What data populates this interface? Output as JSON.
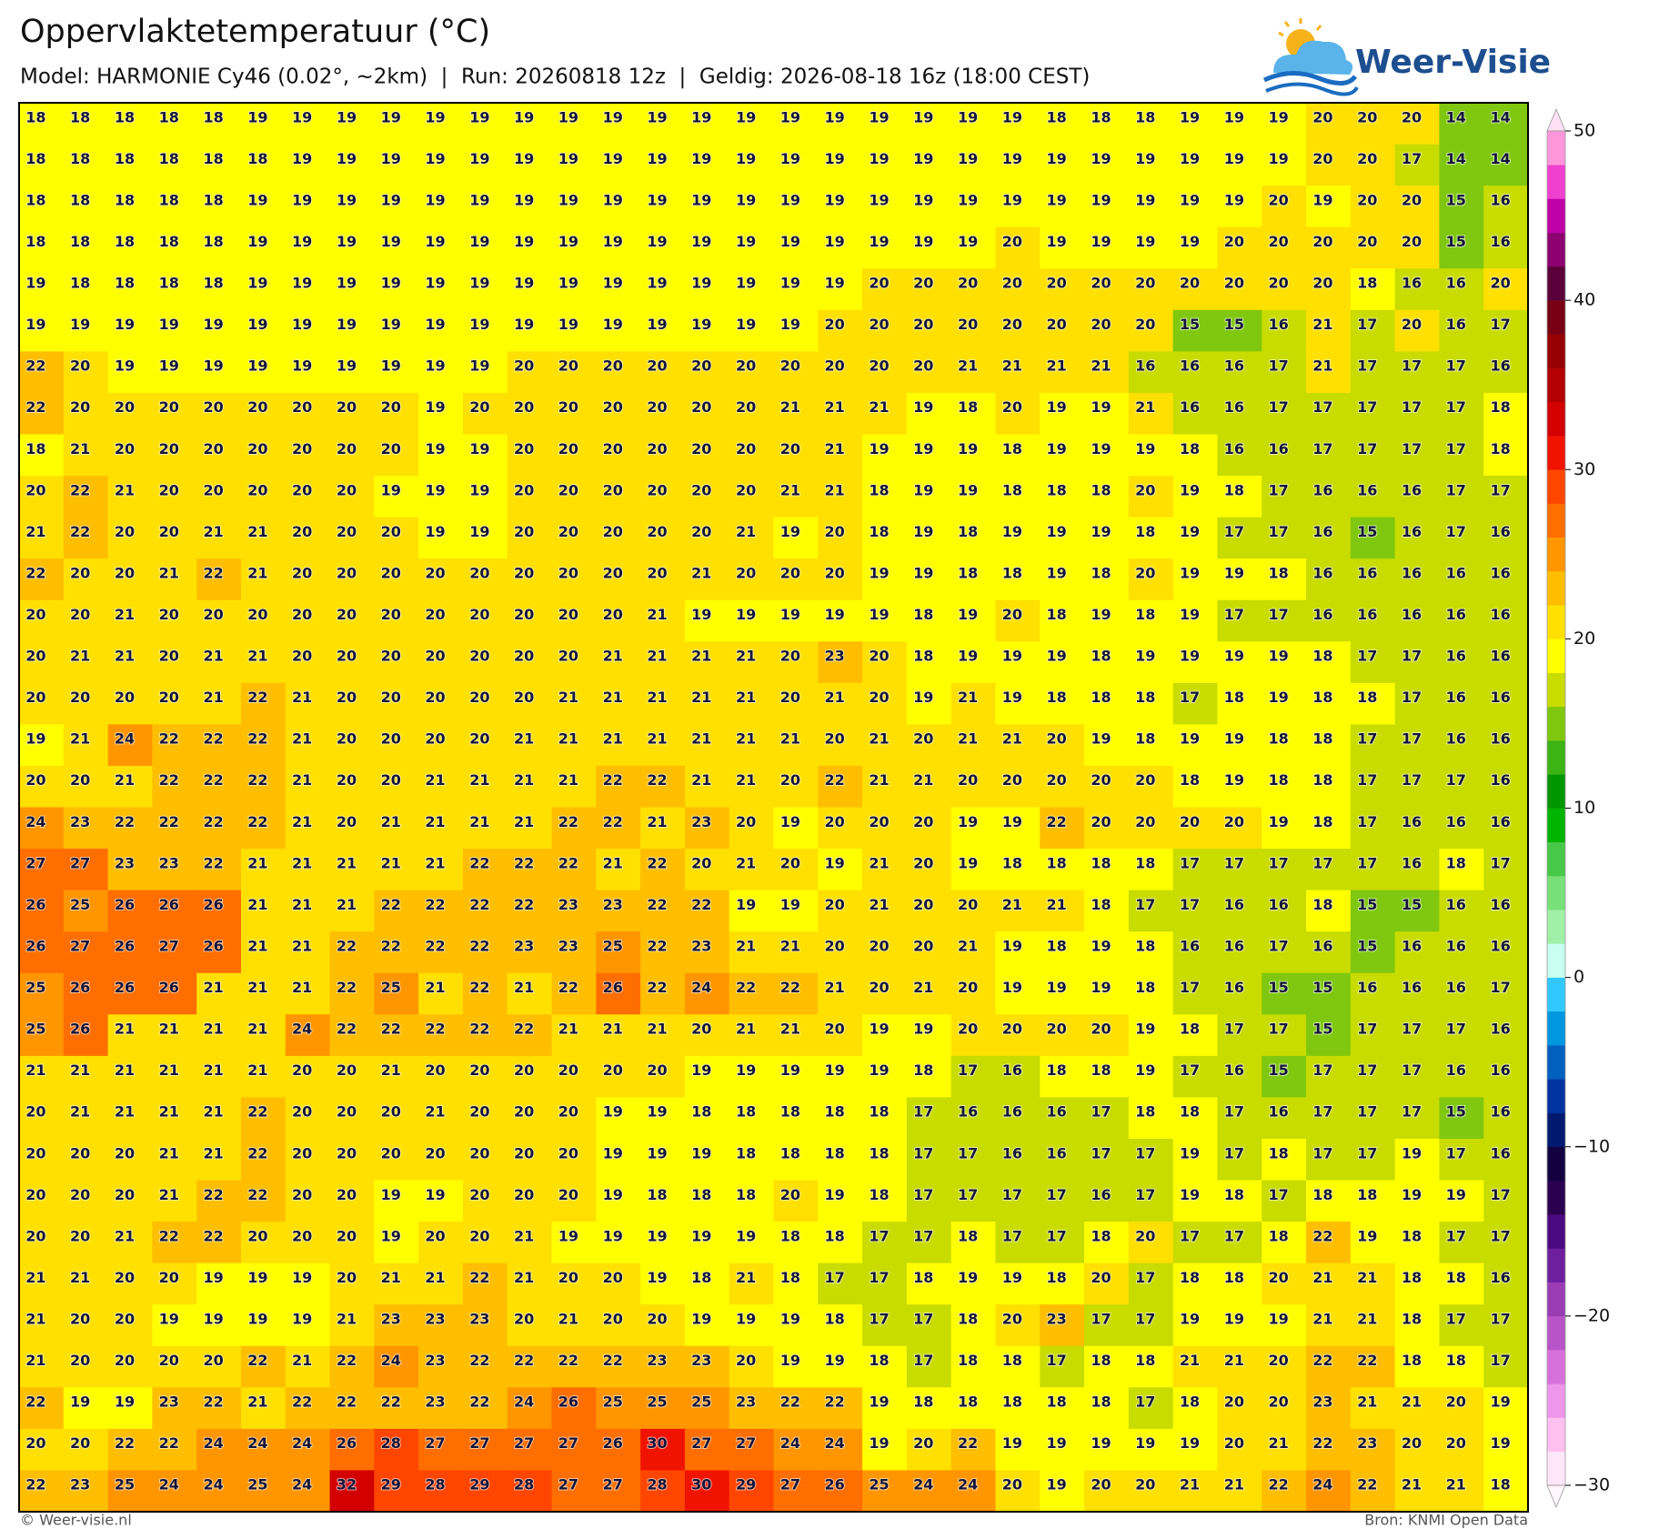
{
  "header": {
    "title": "Oppervlaktetemperatuur (°C)",
    "subtitle": "Model: HARMONIE Cy46 (0.02°, ~2km)  |  Run: 20260818 12z  |  Geldig: 2026-08-18 16z (18:00 CEST)",
    "logo": "Weer-Visie"
  },
  "grid": {
    "rows": [
      [
        18,
        18,
        18,
        18,
        18,
        19,
        19,
        19,
        19,
        19,
        19,
        19,
        19,
        19,
        19,
        19,
        19,
        19,
        19,
        19,
        19,
        19,
        19,
        18,
        18,
        18,
        19,
        19,
        19,
        20,
        20,
        20,
        14,
        14
      ],
      [
        18,
        18,
        18,
        18,
        18,
        18,
        19,
        19,
        19,
        19,
        19,
        19,
        19,
        19,
        19,
        19,
        19,
        19,
        19,
        19,
        19,
        19,
        19,
        19,
        19,
        19,
        19,
        19,
        19,
        20,
        20,
        17,
        14,
        14
      ],
      [
        18,
        18,
        18,
        18,
        18,
        19,
        19,
        19,
        19,
        19,
        19,
        19,
        19,
        19,
        19,
        19,
        19,
        19,
        19,
        19,
        19,
        19,
        19,
        19,
        19,
        19,
        19,
        19,
        20,
        19,
        20,
        20,
        15,
        16
      ],
      [
        18,
        18,
        18,
        18,
        18,
        19,
        19,
        19,
        19,
        19,
        19,
        19,
        19,
        19,
        19,
        19,
        19,
        19,
        19,
        19,
        19,
        19,
        20,
        19,
        19,
        19,
        19,
        20,
        20,
        20,
        20,
        20,
        15,
        16
      ],
      [
        19,
        18,
        18,
        18,
        18,
        19,
        19,
        19,
        19,
        19,
        19,
        19,
        19,
        19,
        19,
        19,
        19,
        19,
        19,
        20,
        20,
        20,
        20,
        20,
        20,
        20,
        20,
        20,
        20,
        20,
        18,
        16,
        16,
        20
      ],
      [
        19,
        19,
        19,
        19,
        19,
        19,
        19,
        19,
        19,
        19,
        19,
        19,
        19,
        19,
        19,
        19,
        19,
        19,
        20,
        20,
        20,
        20,
        20,
        20,
        20,
        20,
        15,
        15,
        16,
        21,
        17,
        20,
        16,
        17
      ],
      [
        22,
        20,
        19,
        19,
        19,
        19,
        19,
        19,
        19,
        19,
        19,
        20,
        20,
        20,
        20,
        20,
        20,
        20,
        20,
        20,
        20,
        21,
        21,
        21,
        21,
        16,
        16,
        16,
        17,
        21,
        17,
        17,
        17,
        16
      ],
      [
        22,
        20,
        20,
        20,
        20,
        20,
        20,
        20,
        20,
        19,
        20,
        20,
        20,
        20,
        20,
        20,
        20,
        21,
        21,
        21,
        19,
        18,
        20,
        19,
        19,
        21,
        16,
        16,
        17,
        17,
        17,
        17,
        17,
        18
      ],
      [
        18,
        21,
        20,
        20,
        20,
        20,
        20,
        20,
        20,
        19,
        19,
        20,
        20,
        20,
        20,
        20,
        20,
        20,
        21,
        19,
        19,
        19,
        18,
        19,
        19,
        19,
        18,
        16,
        16,
        17,
        17,
        17,
        17,
        18
      ],
      [
        20,
        22,
        21,
        20,
        20,
        20,
        20,
        20,
        19,
        19,
        19,
        20,
        20,
        20,
        20,
        20,
        20,
        21,
        21,
        18,
        19,
        19,
        18,
        18,
        18,
        20,
        19,
        18,
        17,
        16,
        16,
        16,
        17,
        17
      ],
      [
        21,
        22,
        20,
        20,
        21,
        21,
        20,
        20,
        20,
        19,
        19,
        20,
        20,
        20,
        20,
        20,
        21,
        19,
        20,
        18,
        19,
        18,
        19,
        19,
        19,
        18,
        19,
        17,
        17,
        16,
        15,
        16,
        17,
        16
      ],
      [
        22,
        20,
        20,
        21,
        22,
        21,
        20,
        20,
        20,
        20,
        20,
        20,
        20,
        20,
        20,
        21,
        20,
        20,
        20,
        19,
        19,
        18,
        18,
        19,
        18,
        20,
        19,
        19,
        18,
        16,
        16,
        16,
        16,
        16
      ],
      [
        20,
        20,
        21,
        20,
        20,
        20,
        20,
        20,
        20,
        20,
        20,
        20,
        20,
        20,
        21,
        19,
        19,
        19,
        19,
        19,
        18,
        19,
        20,
        18,
        19,
        18,
        19,
        17,
        17,
        16,
        16,
        16,
        16,
        16
      ],
      [
        20,
        21,
        21,
        20,
        21,
        21,
        20,
        20,
        20,
        20,
        20,
        20,
        20,
        21,
        21,
        21,
        21,
        20,
        23,
        20,
        18,
        19,
        19,
        19,
        18,
        19,
        19,
        19,
        19,
        18,
        17,
        17,
        16,
        16
      ],
      [
        20,
        20,
        20,
        20,
        21,
        22,
        21,
        20,
        20,
        20,
        20,
        20,
        21,
        21,
        21,
        21,
        21,
        20,
        21,
        20,
        19,
        21,
        19,
        18,
        18,
        18,
        17,
        18,
        19,
        18,
        18,
        17,
        16,
        16
      ],
      [
        19,
        21,
        24,
        22,
        22,
        22,
        21,
        20,
        20,
        20,
        20,
        21,
        21,
        21,
        21,
        21,
        21,
        21,
        20,
        21,
        20,
        21,
        21,
        20,
        19,
        18,
        19,
        19,
        18,
        18,
        17,
        17,
        16,
        16
      ],
      [
        20,
        20,
        21,
        22,
        22,
        22,
        21,
        20,
        20,
        21,
        21,
        21,
        21,
        22,
        22,
        21,
        21,
        20,
        22,
        21,
        21,
        20,
        20,
        20,
        20,
        20,
        18,
        19,
        18,
        18,
        17,
        17,
        17,
        16
      ],
      [
        24,
        23,
        22,
        22,
        22,
        22,
        21,
        20,
        21,
        21,
        21,
        21,
        22,
        22,
        21,
        23,
        20,
        19,
        20,
        20,
        20,
        19,
        19,
        22,
        20,
        20,
        20,
        20,
        19,
        18,
        17,
        16,
        16,
        16
      ],
      [
        27,
        27,
        23,
        23,
        22,
        21,
        21,
        21,
        21,
        21,
        22,
        22,
        22,
        21,
        22,
        20,
        21,
        20,
        19,
        21,
        20,
        19,
        18,
        18,
        18,
        18,
        17,
        17,
        17,
        17,
        17,
        16,
        18,
        17
      ],
      [
        26,
        25,
        26,
        26,
        26,
        21,
        21,
        21,
        22,
        22,
        22,
        22,
        23,
        23,
        22,
        22,
        19,
        19,
        20,
        21,
        20,
        20,
        21,
        21,
        18,
        17,
        17,
        16,
        16,
        18,
        15,
        15,
        16,
        16
      ],
      [
        26,
        27,
        26,
        27,
        26,
        21,
        21,
        22,
        22,
        22,
        22,
        23,
        23,
        25,
        22,
        23,
        21,
        21,
        20,
        20,
        20,
        21,
        19,
        18,
        19,
        18,
        16,
        16,
        17,
        16,
        15,
        16,
        16,
        16
      ],
      [
        25,
        26,
        26,
        26,
        21,
        21,
        21,
        22,
        25,
        21,
        22,
        21,
        22,
        26,
        22,
        24,
        22,
        22,
        21,
        20,
        21,
        20,
        19,
        19,
        19,
        18,
        17,
        16,
        15,
        15,
        16,
        16,
        16,
        17
      ],
      [
        25,
        26,
        21,
        21,
        21,
        21,
        24,
        22,
        22,
        22,
        22,
        22,
        21,
        21,
        21,
        20,
        21,
        21,
        20,
        19,
        19,
        20,
        20,
        20,
        20,
        19,
        18,
        17,
        17,
        15,
        17,
        17,
        17,
        16
      ],
      [
        21,
        21,
        21,
        21,
        21,
        21,
        20,
        20,
        21,
        20,
        20,
        20,
        20,
        20,
        20,
        19,
        19,
        19,
        19,
        19,
        18,
        17,
        16,
        18,
        18,
        19,
        17,
        16,
        15,
        17,
        17,
        17,
        16,
        16
      ],
      [
        20,
        21,
        21,
        21,
        21,
        22,
        20,
        20,
        20,
        21,
        20,
        20,
        20,
        19,
        19,
        18,
        18,
        18,
        18,
        18,
        17,
        16,
        16,
        16,
        17,
        18,
        18,
        17,
        16,
        17,
        17,
        17,
        15,
        16
      ],
      [
        20,
        20,
        20,
        21,
        21,
        22,
        20,
        20,
        20,
        20,
        20,
        20,
        20,
        19,
        19,
        19,
        18,
        18,
        18,
        18,
        17,
        17,
        16,
        16,
        17,
        17,
        19,
        17,
        18,
        17,
        17,
        19,
        17,
        16
      ],
      [
        20,
        20,
        20,
        21,
        22,
        22,
        20,
        20,
        19,
        19,
        20,
        20,
        20,
        19,
        18,
        18,
        18,
        20,
        19,
        18,
        17,
        17,
        17,
        17,
        16,
        17,
        19,
        18,
        17,
        18,
        18,
        19,
        19,
        17
      ],
      [
        20,
        20,
        21,
        22,
        22,
        20,
        20,
        20,
        19,
        20,
        20,
        21,
        19,
        19,
        19,
        19,
        19,
        18,
        18,
        17,
        17,
        18,
        17,
        17,
        18,
        20,
        17,
        17,
        18,
        22,
        19,
        18,
        17,
        17
      ],
      [
        21,
        21,
        20,
        20,
        19,
        19,
        19,
        20,
        21,
        21,
        22,
        21,
        20,
        20,
        19,
        18,
        21,
        18,
        17,
        17,
        18,
        19,
        19,
        18,
        20,
        17,
        18,
        18,
        20,
        21,
        21,
        18,
        18,
        16
      ],
      [
        21,
        20,
        20,
        19,
        19,
        19,
        19,
        21,
        23,
        23,
        23,
        20,
        21,
        20,
        20,
        19,
        19,
        19,
        18,
        17,
        17,
        18,
        20,
        23,
        17,
        17,
        19,
        19,
        19,
        21,
        21,
        18,
        17,
        17
      ],
      [
        21,
        20,
        20,
        20,
        20,
        22,
        21,
        22,
        24,
        23,
        22,
        22,
        22,
        22,
        23,
        23,
        20,
        19,
        19,
        18,
        17,
        18,
        18,
        17,
        18,
        18,
        21,
        21,
        20,
        22,
        22,
        18,
        18,
        17
      ],
      [
        22,
        19,
        19,
        23,
        22,
        21,
        22,
        22,
        22,
        23,
        22,
        24,
        26,
        25,
        25,
        25,
        23,
        22,
        22,
        19,
        18,
        18,
        18,
        18,
        18,
        17,
        18,
        20,
        20,
        23,
        21,
        21,
        20,
        19
      ],
      [
        20,
        20,
        22,
        22,
        24,
        24,
        24,
        26,
        28,
        27,
        27,
        27,
        27,
        26,
        30,
        27,
        27,
        24,
        24,
        19,
        20,
        22,
        19,
        19,
        19,
        19,
        19,
        20,
        21,
        22,
        23,
        20,
        20,
        19
      ],
      [
        22,
        23,
        25,
        24,
        24,
        25,
        24,
        32,
        29,
        28,
        29,
        28,
        27,
        27,
        28,
        30,
        29,
        27,
        26,
        25,
        24,
        24,
        20,
        19,
        20,
        20,
        21,
        21,
        22,
        24,
        22,
        21,
        21,
        18
      ]
    ]
  },
  "colorbar": {
    "lim": [
      -30,
      50
    ],
    "ticks": [
      {
        "value": -30,
        "label": "−30"
      },
      {
        "value": -20,
        "label": "−20"
      },
      {
        "value": -10,
        "label": "−10"
      },
      0,
      10,
      20,
      30,
      40,
      50
    ],
    "colors": [
      "#ffe6f8",
      "#ffc0f0",
      "#ee96ea",
      "#d870dc",
      "#b854c8",
      "#9a3cb4",
      "#6e1e9e",
      "#4a0a80",
      "#2c0050",
      "#140040",
      "#001a70",
      "#0033a0",
      "#0060c0",
      "#0096e0",
      "#30c8ff",
      "#c8fff0",
      "#a0f0a8",
      "#78e078",
      "#48c848",
      "#00b400",
      "#009600",
      "#3cb414",
      "#80c810",
      "#c8dc00",
      "#ffff00",
      "#ffe000",
      "#ffbe00",
      "#ff9600",
      "#ff6e00",
      "#ff4600",
      "#f01400",
      "#d20000",
      "#b40000",
      "#960000",
      "#780014",
      "#5a003a",
      "#8c0070",
      "#c000a8",
      "#f040d0",
      "#ff96dc"
    ]
  },
  "footer": {
    "left": "© Weer-visie.nl",
    "right": "Bron: KNMI Open Data"
  }
}
